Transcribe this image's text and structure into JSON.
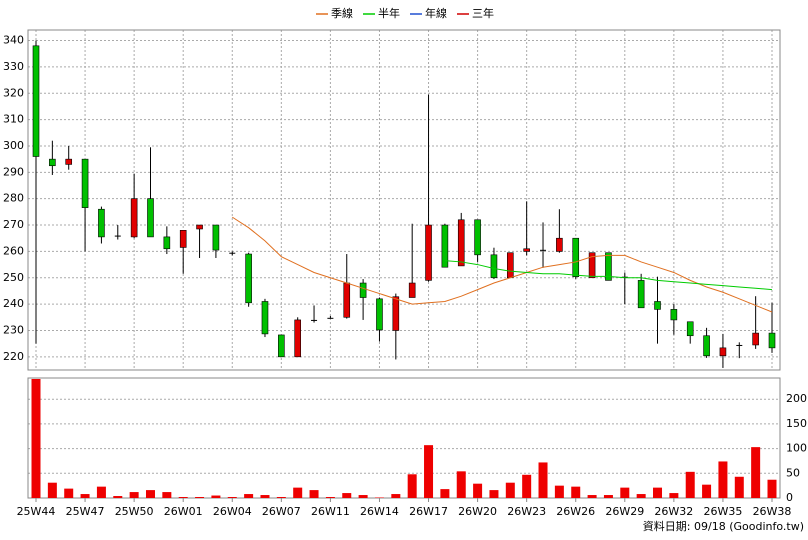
{
  "chart_data": [
    {
      "type": "candlestick",
      "categories": [
        "25W44",
        null,
        null,
        "25W47",
        null,
        null,
        "25W50",
        null,
        null,
        "26W01",
        null,
        null,
        "26W04",
        null,
        null,
        "26W07",
        null,
        null,
        "26W11",
        null,
        null,
        "26W14",
        null,
        null,
        "26W17",
        null,
        null,
        "26W20",
        null,
        null,
        "26W23",
        null,
        null,
        "26W26",
        null,
        null,
        "26W29",
        null,
        null,
        "26W32",
        null,
        null,
        "26W35",
        null,
        null,
        "26W38"
      ],
      "open": [
        338,
        295,
        293,
        295,
        276,
        266,
        265.5,
        280,
        265.5,
        261.5,
        268.5,
        270,
        259.5,
        259,
        241,
        228.3,
        220,
        234,
        234.8,
        235,
        248,
        242,
        230,
        242.5,
        249,
        270,
        254.5,
        272,
        258.7,
        250,
        260,
        260.6,
        260,
        265,
        250,
        259.5,
        250.4,
        249,
        241,
        238,
        233.3,
        228,
        220.4,
        224.5,
        224.5,
        229
      ],
      "high": [
        340,
        302,
        300,
        295,
        277,
        270,
        289.5,
        299.5,
        269.5,
        268,
        270,
        270,
        260,
        259.5,
        242,
        228.3,
        235,
        239.5,
        235.5,
        259,
        249.5,
        242.5,
        244,
        270.5,
        319.5,
        270.5,
        274.6,
        272,
        261.4,
        259.5,
        279,
        271,
        276,
        265,
        259.5,
        259.5,
        252,
        251.5,
        250.4,
        240,
        233.3,
        231,
        228.7,
        225.5,
        243,
        240.5
      ],
      "low": [
        225,
        289,
        291,
        260,
        263,
        264.5,
        265,
        265.5,
        259,
        251.5,
        257.5,
        257.5,
        258.5,
        239,
        227.5,
        220,
        220,
        233,
        234.5,
        234.5,
        234,
        225.8,
        219,
        242.5,
        248.5,
        254,
        254.5,
        256,
        249.5,
        250,
        258.5,
        253.8,
        259.5,
        249.6,
        250,
        249,
        240,
        238.6,
        225,
        228.4,
        225,
        219.6,
        215.8,
        219.5,
        223,
        221.5
      ],
      "close": [
        296,
        292.5,
        295,
        276.6,
        265.5,
        266,
        280,
        265.5,
        261,
        268,
        270,
        260.5,
        259.5,
        240.5,
        228.7,
        220,
        234,
        234,
        234.8,
        248,
        242.5,
        230.2,
        242.8,
        248,
        270,
        254,
        272,
        258.7,
        250,
        259.5,
        261,
        260.6,
        265,
        250.4,
        259.5,
        249,
        250.4,
        238.6,
        238,
        234,
        228,
        220.4,
        223.4,
        224.5,
        229,
        223.4
      ],
      "up_color": "#e00000",
      "down_color": "#00c000",
      "series": [
        {
          "name": "季線",
          "color": "#e07020",
          "values": [
            null,
            null,
            null,
            null,
            null,
            null,
            null,
            null,
            null,
            null,
            null,
            null,
            273,
            269,
            264,
            258,
            255,
            252,
            250,
            248,
            246,
            244,
            242,
            240,
            240.5,
            241,
            243,
            245.5,
            248,
            250,
            252,
            254,
            255,
            256,
            258,
            258.5,
            258.5,
            256,
            254,
            252,
            249,
            246.5,
            244.5,
            242,
            239.5,
            237
          ]
        },
        {
          "name": "半年",
          "color": "#00cc00",
          "values": [
            null,
            null,
            null,
            null,
            null,
            null,
            null,
            null,
            null,
            null,
            null,
            null,
            null,
            null,
            null,
            null,
            null,
            null,
            null,
            null,
            null,
            null,
            null,
            null,
            null,
            256.5,
            256,
            255,
            253.5,
            252.5,
            252,
            251.5,
            251.5,
            251,
            250.5,
            250.5,
            250,
            250,
            249,
            248.5,
            248,
            247.5,
            247,
            246.5,
            246,
            245.5
          ]
        },
        {
          "name": "年線",
          "color": "#2050d0",
          "values": [
            null,
            null,
            null,
            null,
            null,
            null,
            null,
            null,
            null,
            null,
            null,
            null,
            null,
            null,
            null,
            null,
            null,
            null,
            null,
            null,
            null,
            null,
            null,
            null,
            null,
            null,
            null,
            null,
            null,
            null,
            null,
            null,
            null,
            null,
            null,
            null,
            null,
            null,
            null,
            null,
            null,
            null,
            null,
            null,
            null,
            null
          ]
        },
        {
          "name": "三年",
          "color": "#d00000",
          "values": [
            null,
            null,
            null,
            null,
            null,
            null,
            null,
            null,
            null,
            null,
            null,
            null,
            null,
            null,
            null,
            null,
            null,
            null,
            null,
            null,
            null,
            null,
            null,
            null,
            null,
            null,
            null,
            null,
            null,
            null,
            null,
            null,
            null,
            null,
            null,
            null,
            null,
            null,
            null,
            null,
            null,
            null,
            null,
            null,
            null,
            null
          ]
        }
      ],
      "ylim": [
        215,
        344
      ],
      "yticks": [
        220,
        230,
        240,
        250,
        260,
        270,
        280,
        290,
        300,
        310,
        320,
        330,
        340
      ],
      "grid": true,
      "legend": "top"
    },
    {
      "type": "bar",
      "values": [
        241,
        31,
        19,
        8,
        23,
        4,
        12,
        16,
        12,
        2,
        2,
        5,
        2,
        8,
        6,
        2,
        21,
        16,
        2,
        10,
        6,
        1,
        8,
        48,
        107,
        18,
        54,
        29,
        16,
        31,
        47,
        72,
        25,
        23,
        6,
        6,
        21,
        8,
        21,
        10,
        53,
        27,
        74,
        43,
        103,
        37
      ],
      "color": "#ee0000",
      "ylim": [
        0,
        243
      ],
      "yticks": [
        0,
        50,
        100,
        150,
        200
      ],
      "grid": true,
      "footnote": "資料日期: 09/18  (Goodinfo.tw)"
    }
  ]
}
